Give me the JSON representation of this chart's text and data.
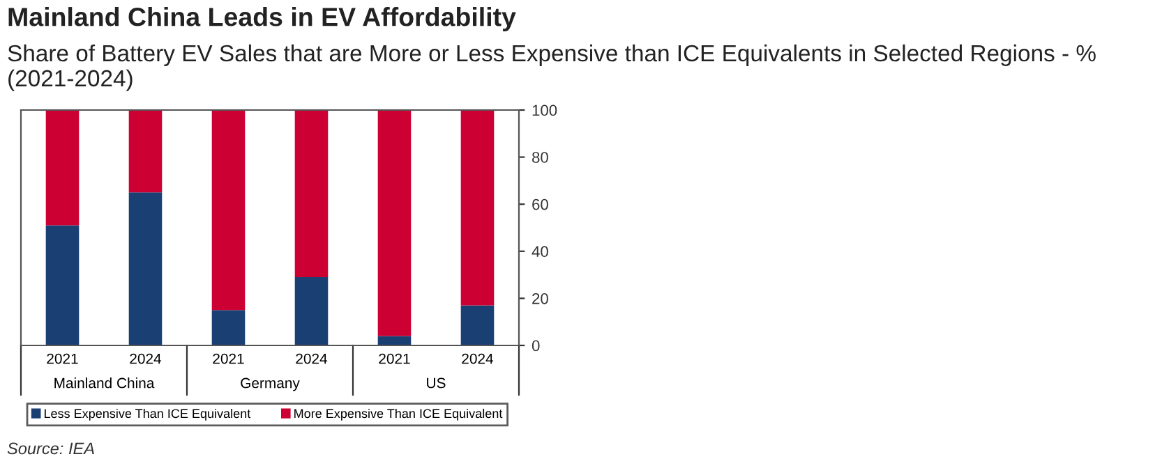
{
  "chart_data": {
    "type": "bar",
    "title": "Mainland China Leads in EV Affordability",
    "subtitle": "Share of Battery EV Sales that are More or Less Expensive than ICE Equivalents in Selected Regions - % (2021-2024)",
    "categories": [
      "2021",
      "2024",
      "2021",
      "2024",
      "2021",
      "2024"
    ],
    "series": [
      {
        "name": "Less Expensive Than ICE Equivalent",
        "color": "#1a3f73",
        "values": [
          51,
          65,
          15,
          29,
          4,
          17
        ]
      },
      {
        "name": "More Expensive Than ICE Equivalent",
        "color": "#cc0033",
        "values": [
          49,
          35,
          85,
          71,
          96,
          83
        ]
      }
    ],
    "stacked": true,
    "ylim": [
      0,
      100
    ],
    "yticks": [
      0,
      20,
      40,
      60,
      80,
      100
    ],
    "grid": false,
    "legend": "bottom",
    "annotations": [
      "Mainland China",
      "Germany",
      "US",
      "Source: IEA"
    ]
  }
}
